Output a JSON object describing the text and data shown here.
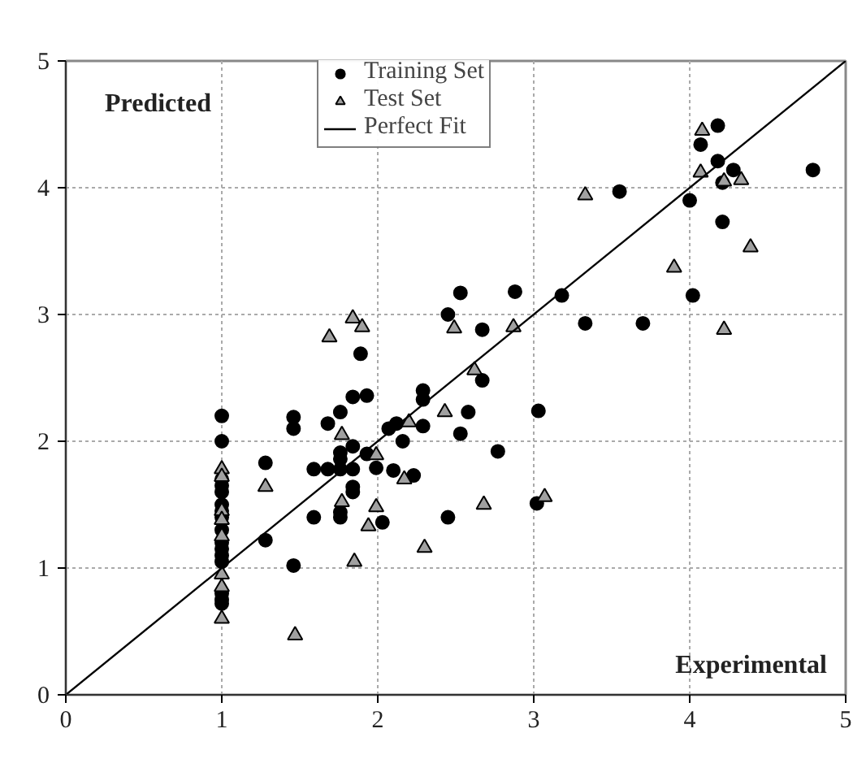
{
  "chart_data": {
    "type": "scatter",
    "xlim": [
      0,
      5
    ],
    "ylim": [
      0,
      5
    ],
    "xticks": [
      0,
      1,
      2,
      3,
      4,
      5
    ],
    "yticks": [
      0,
      1,
      2,
      3,
      4,
      5
    ],
    "grid": true,
    "legend": "top",
    "annotations": [
      "Predicted",
      "Experimental"
    ],
    "series": [
      {
        "name": "Training Set",
        "type": "scatter",
        "marker": "circle",
        "color": "#000000",
        "x": [
          1,
          1,
          1,
          1,
          1,
          1,
          1,
          1,
          1,
          1,
          1,
          1,
          1,
          1,
          1,
          1,
          1.28,
          1.28,
          1.46,
          1.46,
          1.46,
          1.59,
          1.59,
          1.68,
          1.68,
          1.76,
          1.76,
          1.76,
          1.76,
          1.76,
          1.76,
          1.84,
          1.84,
          1.84,
          1.84,
          1.84,
          1.93,
          1.93,
          1.99,
          2.03,
          2.07,
          2.12,
          2.16,
          2.1,
          2.23,
          2.29,
          2.29,
          2.29,
          2.58,
          2.53,
          2.77,
          2.45,
          3.02,
          3.03,
          2.67,
          2.53,
          2.45,
          2.67,
          2.88,
          3.18,
          3.33,
          3.7,
          3.55,
          4.0,
          4.02,
          4.07,
          4.18,
          4.18,
          4.21,
          4.21,
          4.28,
          4.79,
          1.89
        ],
        "values": [
          2.2,
          2.0,
          1.7,
          1.65,
          1.6,
          1.5,
          1.45,
          1.4,
          1.3,
          1.2,
          1.15,
          1.1,
          1.05,
          0.8,
          0.75,
          0.72,
          1.83,
          1.22,
          2.19,
          2.1,
          1.02,
          1.4,
          1.78,
          2.14,
          1.78,
          2.23,
          1.91,
          1.86,
          1.78,
          1.4,
          1.44,
          2.35,
          1.96,
          1.78,
          1.64,
          1.6,
          2.36,
          1.9,
          1.79,
          1.36,
          2.1,
          2.14,
          2.0,
          1.77,
          1.73,
          2.12,
          2.4,
          2.33,
          2.23,
          2.06,
          1.92,
          1.4,
          1.51,
          2.24,
          2.48,
          3.17,
          3.0,
          2.88,
          3.18,
          3.15,
          2.93,
          2.93,
          3.97,
          3.9,
          3.15,
          4.34,
          4.49,
          4.21,
          4.04,
          3.73,
          4.14,
          4.14,
          2.69
        ]
      },
      {
        "name": "Test Set",
        "type": "scatter",
        "marker": "triangle",
        "color": "#a0a0a0",
        "x": [
          1,
          1,
          1,
          1,
          1,
          1,
          1,
          1,
          1.28,
          1.47,
          1.77,
          1.77,
          1.85,
          1.94,
          1.99,
          1.99,
          2.17,
          2.2,
          2.3,
          2.43,
          2.68,
          3.07,
          3.33,
          2.87,
          2.49,
          2.62,
          3.9,
          4.08,
          4.07,
          4.22,
          4.33,
          4.39,
          4.22,
          1.69,
          1.84,
          1.9
        ],
        "values": [
          1.78,
          1.72,
          1.45,
          1.38,
          1.25,
          0.95,
          0.85,
          0.6,
          1.64,
          0.47,
          2.05,
          1.52,
          1.05,
          1.33,
          1.89,
          1.48,
          1.7,
          2.15,
          1.16,
          2.23,
          1.5,
          1.56,
          3.94,
          2.9,
          2.89,
          2.56,
          3.37,
          4.45,
          4.12,
          4.05,
          4.06,
          3.53,
          2.88,
          2.82,
          2.97,
          2.9
        ]
      },
      {
        "name": "Perfect Fit",
        "type": "line",
        "color": "#000000",
        "x": [
          0,
          5
        ],
        "values": [
          0,
          5
        ]
      }
    ]
  }
}
